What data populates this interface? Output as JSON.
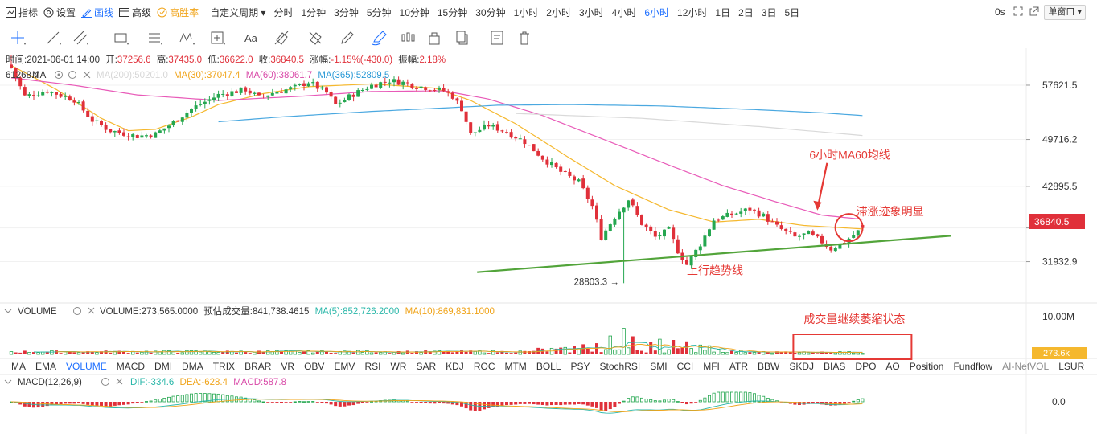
{
  "toolbar": {
    "indicator_label": "指标",
    "settings_label": "设置",
    "draw_label": "画线",
    "advanced_label": "高级",
    "winrate_label": "高胜率",
    "custom_period_label": "自定义周期 ▾",
    "periods": [
      "分时",
      "1分钟",
      "3分钟",
      "5分钟",
      "10分钟",
      "15分钟",
      "30分钟",
      "1小时",
      "2小时",
      "3小时",
      "4小时",
      "6小时",
      "12小时",
      "1日",
      "2日",
      "3日",
      "5日"
    ],
    "active_period": "6小时",
    "zero_s": "0s",
    "window_select": "单窗口 ▾"
  },
  "drawing_tools": [
    "crosshair-tool",
    "line-tool",
    "parallel-line-tool",
    "rectangle-tool",
    "horizontal-lines-tool",
    "wave-tool",
    "measure-tool",
    "text-tool",
    "eraser-tool",
    "hide-tool",
    "pencil-tool",
    "brush-tool",
    "pattern-tool",
    "lock-tool",
    "copy-tool",
    "note-tool",
    "delete-tool"
  ],
  "drawing_tools_text": {
    "text_tool": "Aa"
  },
  "info_bar": {
    "time_label": "时间:",
    "time": "2021-06-01 14:00",
    "open_label": "开:",
    "open": "37256.6",
    "high_label": "高:",
    "high": "37435.0",
    "low_label": "低:",
    "low": "36622.0",
    "close_label": "收:",
    "close": "36840.5",
    "change_label": "涨幅:",
    "change": "-1.15%(-430.0)",
    "amplitude_label": "振幅:",
    "amplitude": "2.18%"
  },
  "ma_bar": {
    "prefix": "61268.4",
    "ma_label": "MA",
    "ma200": "MA(200):50201.0",
    "ma30": "MA(30):37047.4",
    "ma60": "MA(60):38061.7",
    "ma365": "MA(365):52809.5"
  },
  "price_axis": {
    "ticks": [
      "57621.5",
      "49716.2",
      "42895.5",
      "36840.5",
      "31932.9"
    ],
    "current": "36840.5"
  },
  "annotations": {
    "ma60_label": "6小时MA60均线",
    "stagnation_label": "滞涨迹象明显",
    "trendline_label": "上行趋势线",
    "low_marker": "28803.3 →",
    "volume_label": "成交量继续萎缩状态"
  },
  "volume_bar": {
    "title": "VOLUME",
    "volume": "VOLUME:273,565.0000",
    "estimated": "预估成交量:841,738.4615",
    "ma5": "MA(5):852,726.2000",
    "ma10": "MA(10):869,831.1000",
    "axis_top": "10.00M",
    "current": "273.6k"
  },
  "indicator_tabs": [
    "MA",
    "EMA",
    "VOLUME",
    "MACD",
    "DMI",
    "DMA",
    "TRIX",
    "BRAR",
    "VR",
    "OBV",
    "EMV",
    "RSI",
    "WR",
    "SAR",
    "KDJ",
    "ROC",
    "MTM",
    "BOLL",
    "PSY",
    "StochRSI",
    "SMI",
    "CCI",
    "MFI",
    "ATR",
    "BBW",
    "SKDJ",
    "BIAS",
    "DPO",
    "AO",
    "Position",
    "Fundflow",
    "AI-NetVOL",
    "LSUR"
  ],
  "active_indicator_tab": "VOLUME",
  "muted_indicator_tabs": [
    "AI-NetVOL"
  ],
  "macd_bar": {
    "title": "MACD(12,26,9)",
    "dif": "DIF:-334.6",
    "dea": "DEA:-628.4",
    "macd": "MACD:587.8",
    "axis_zero": "0.0"
  },
  "colors": {
    "up": "#25a750",
    "down": "#e0303a",
    "accent": "#1e6fff",
    "ma30": "#f5b82e",
    "ma60": "#e85ab8",
    "ma365": "#4aa8e0",
    "annotation": "#e53935",
    "trendline": "#52a43a"
  },
  "chart_data": {
    "type": "candlestick",
    "y_range": [
      26500,
      63000
    ],
    "y_ticks": [
      57621.5,
      49716.2,
      42895.5,
      36840.5,
      31932.9
    ],
    "last_candle": {
      "open": 37256.6,
      "high": 37435.0,
      "low": 36622.0,
      "close": 36840.5
    },
    "annotated_low": 28803.3,
    "anchors": [
      [
        0,
        60200
      ],
      [
        3,
        56000
      ],
      [
        8,
        56800
      ],
      [
        14,
        55500
      ],
      [
        18,
        52500
      ],
      [
        22,
        51000
      ],
      [
        28,
        50200
      ],
      [
        32,
        50500
      ],
      [
        36,
        52200
      ],
      [
        40,
        54200
      ],
      [
        46,
        56200
      ],
      [
        52,
        57000
      ],
      [
        55,
        55800
      ],
      [
        58,
        56500
      ],
      [
        63,
        57300
      ],
      [
        66,
        58100
      ],
      [
        70,
        56500
      ],
      [
        72,
        54800
      ],
      [
        76,
        56300
      ],
      [
        80,
        57600
      ],
      [
        84,
        58300
      ],
      [
        87,
        58000
      ],
      [
        90,
        57500
      ],
      [
        93,
        57200
      ],
      [
        96,
        56800
      ],
      [
        98,
        56000
      ],
      [
        100,
        54200
      ],
      [
        102,
        50500
      ],
      [
        106,
        51800
      ],
      [
        110,
        50800
      ],
      [
        114,
        49400
      ],
      [
        118,
        47000
      ],
      [
        122,
        45000
      ],
      [
        126,
        43500
      ],
      [
        129,
        40000
      ],
      [
        131,
        35500
      ],
      [
        134,
        38500
      ],
      [
        137,
        41000
      ],
      [
        140,
        37500
      ],
      [
        143,
        35500
      ],
      [
        146,
        36500
      ],
      [
        148,
        33500
      ],
      [
        150,
        31500
      ],
      [
        153,
        34500
      ],
      [
        156,
        38000
      ],
      [
        160,
        38800
      ],
      [
        164,
        39600
      ],
      [
        167,
        38600
      ],
      [
        170,
        37000
      ],
      [
        174,
        35500
      ],
      [
        177,
        36000
      ],
      [
        180,
        34800
      ],
      [
        182,
        33800
      ],
      [
        185,
        34800
      ],
      [
        187,
        35800
      ],
      [
        189,
        36840.5
      ]
    ],
    "ma_series": [
      {
        "name": "MA(30)",
        "points": [
          [
            0,
            60500
          ],
          [
            10,
            57000
          ],
          [
            20,
            52800
          ],
          [
            26,
            51000
          ],
          [
            32,
            51200
          ],
          [
            40,
            53000
          ],
          [
            46,
            54800
          ],
          [
            56,
            56400
          ],
          [
            66,
            57400
          ],
          [
            80,
            57800
          ],
          [
            94,
            57200
          ],
          [
            102,
            55400
          ],
          [
            112,
            52000
          ],
          [
            124,
            47000
          ],
          [
            134,
            43000
          ],
          [
            146,
            39500
          ],
          [
            156,
            37700
          ],
          [
            166,
            38100
          ],
          [
            176,
            37200
          ],
          [
            189,
            36700
          ]
        ]
      },
      {
        "name": "MA(60)",
        "points": [
          [
            0,
            58700
          ],
          [
            14,
            57600
          ],
          [
            28,
            56200
          ],
          [
            46,
            55400
          ],
          [
            64,
            56000
          ],
          [
            80,
            56700
          ],
          [
            96,
            56800
          ],
          [
            106,
            55600
          ],
          [
            118,
            53200
          ],
          [
            132,
            49600
          ],
          [
            146,
            46000
          ],
          [
            158,
            43000
          ],
          [
            170,
            40600
          ],
          [
            180,
            38700
          ],
          [
            189,
            38100
          ]
        ]
      },
      {
        "name": "MA(365)",
        "points": [
          [
            46,
            52300
          ],
          [
            60,
            53000
          ],
          [
            80,
            53800
          ],
          [
            96,
            54300
          ],
          [
            108,
            54700
          ],
          [
            124,
            54800
          ],
          [
            144,
            54600
          ],
          [
            164,
            54100
          ],
          [
            180,
            53600
          ],
          [
            189,
            53200
          ]
        ]
      },
      {
        "name": "MA(200)",
        "points": [
          [
            112,
            53500
          ],
          [
            140,
            52800
          ],
          [
            166,
            51600
          ],
          [
            189,
            50300
          ]
        ]
      }
    ],
    "volume_spikes": [
      [
        136,
        7.2
      ],
      [
        133,
        5.1
      ],
      [
        138,
        5.0
      ],
      [
        144,
        4.2
      ],
      [
        147,
        4.0
      ],
      [
        150,
        3.6
      ],
      [
        130,
        3.1
      ],
      [
        127,
        2.8
      ],
      [
        142,
        3.4
      ],
      [
        153,
        2.6
      ],
      [
        125,
        2.4
      ],
      [
        155,
        2.4
      ]
    ],
    "volume_range": [
      0,
      10
    ]
  }
}
